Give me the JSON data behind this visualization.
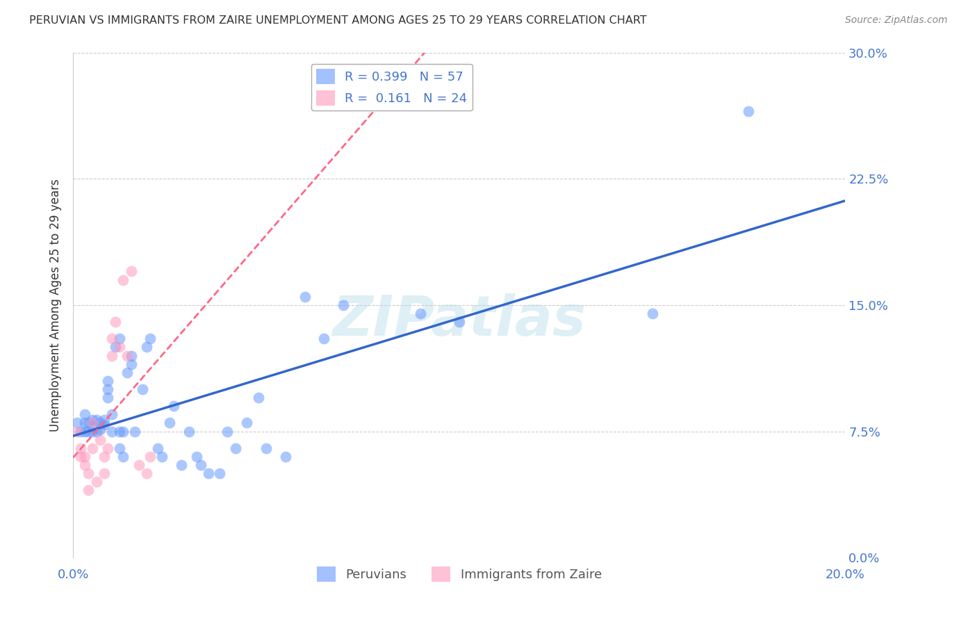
{
  "title": "PERUVIAN VS IMMIGRANTS FROM ZAIRE UNEMPLOYMENT AMONG AGES 25 TO 29 YEARS CORRELATION CHART",
  "source": "Source: ZipAtlas.com",
  "ylabel": "Unemployment Among Ages 25 to 29 years",
  "xlim": [
    0.0,
    0.2
  ],
  "ylim": [
    0.0,
    0.3
  ],
  "xticks": [
    0.0,
    0.05,
    0.1,
    0.15,
    0.2
  ],
  "ytick_labels": [
    "0.0%",
    "7.5%",
    "15.0%",
    "22.5%",
    "30.0%"
  ],
  "yticks": [
    0.0,
    0.075,
    0.15,
    0.225,
    0.3
  ],
  "peruvian_color": "#6699ff",
  "zaire_color": "#ff99bb",
  "trend_peru_color": "#3366cc",
  "trend_zaire_color": "#ff6688",
  "watermark": "ZIPatlas",
  "legend_r1": "R = 0.399",
  "legend_n1": "N = 57",
  "legend_r2": "R =  0.161",
  "legend_n2": "N = 24",
  "peruvians_x": [
    0.001,
    0.002,
    0.003,
    0.003,
    0.003,
    0.004,
    0.004,
    0.005,
    0.005,
    0.005,
    0.006,
    0.006,
    0.007,
    0.007,
    0.008,
    0.008,
    0.009,
    0.009,
    0.009,
    0.01,
    0.01,
    0.011,
    0.012,
    0.012,
    0.012,
    0.013,
    0.013,
    0.014,
    0.015,
    0.015,
    0.016,
    0.018,
    0.019,
    0.02,
    0.022,
    0.023,
    0.025,
    0.026,
    0.028,
    0.03,
    0.032,
    0.033,
    0.035,
    0.038,
    0.04,
    0.042,
    0.045,
    0.048,
    0.05,
    0.055,
    0.06,
    0.065,
    0.07,
    0.09,
    0.1,
    0.15,
    0.175
  ],
  "peruvians_y": [
    0.08,
    0.075,
    0.075,
    0.08,
    0.085,
    0.075,
    0.08,
    0.075,
    0.078,
    0.082,
    0.075,
    0.082,
    0.076,
    0.08,
    0.082,
    0.079,
    0.095,
    0.1,
    0.105,
    0.075,
    0.085,
    0.125,
    0.13,
    0.075,
    0.065,
    0.06,
    0.075,
    0.11,
    0.115,
    0.12,
    0.075,
    0.1,
    0.125,
    0.13,
    0.065,
    0.06,
    0.08,
    0.09,
    0.055,
    0.075,
    0.06,
    0.055,
    0.05,
    0.05,
    0.075,
    0.065,
    0.08,
    0.095,
    0.065,
    0.06,
    0.155,
    0.13,
    0.15,
    0.145,
    0.14,
    0.145,
    0.265
  ],
  "zaire_x": [
    0.001,
    0.002,
    0.002,
    0.003,
    0.003,
    0.004,
    0.004,
    0.005,
    0.005,
    0.006,
    0.007,
    0.008,
    0.008,
    0.009,
    0.01,
    0.01,
    0.011,
    0.012,
    0.013,
    0.014,
    0.015,
    0.017,
    0.019,
    0.02
  ],
  "zaire_y": [
    0.075,
    0.06,
    0.065,
    0.055,
    0.06,
    0.04,
    0.05,
    0.065,
    0.08,
    0.045,
    0.07,
    0.05,
    0.06,
    0.065,
    0.12,
    0.13,
    0.14,
    0.125,
    0.165,
    0.12,
    0.17,
    0.055,
    0.05,
    0.06
  ]
}
